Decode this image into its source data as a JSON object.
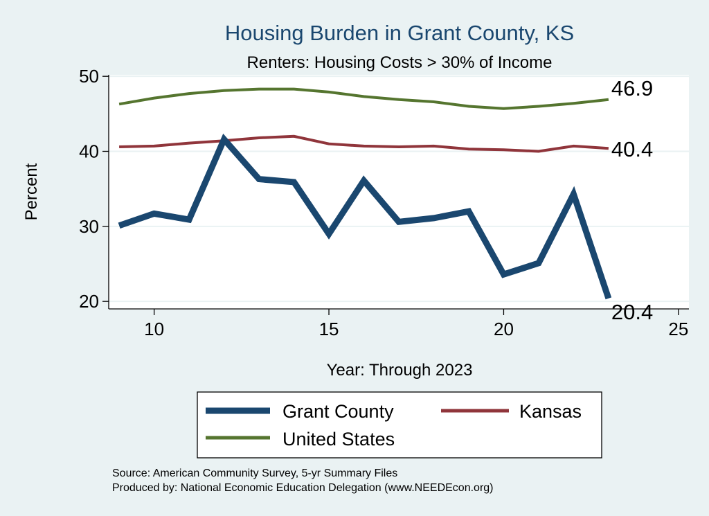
{
  "chart_data": {
    "type": "line",
    "title": "Housing Burden in Grant County, KS",
    "subtitle": "Renters: Housing Costs > 30% of Income",
    "xlabel": "Year: Through 2023",
    "ylabel": "Percent",
    "xlim": [
      8.7,
      25.3
    ],
    "ylim": [
      19,
      50.2
    ],
    "xticks": [
      10,
      15,
      20,
      25
    ],
    "yticks": [
      20,
      30,
      40,
      50
    ],
    "grid": true,
    "legend_position": "bottom",
    "x": [
      9,
      10,
      11,
      12,
      13,
      14,
      15,
      16,
      17,
      18,
      19,
      20,
      21,
      22,
      23
    ],
    "series": [
      {
        "name": "Grant County",
        "color": "#1a476f",
        "values": [
          30.1,
          31.7,
          30.9,
          41.6,
          36.3,
          35.9,
          29.0,
          36.1,
          30.6,
          31.1,
          32.0,
          23.6,
          25.1,
          34.3,
          20.4
        ],
        "end_label": "20.4"
      },
      {
        "name": "Kansas",
        "color": "#90353b",
        "values": [
          40.6,
          40.7,
          41.1,
          41.4,
          41.8,
          42.0,
          41.0,
          40.7,
          40.6,
          40.7,
          40.3,
          40.2,
          40.0,
          40.7,
          40.4
        ],
        "end_label": "40.4"
      },
      {
        "name": "United States",
        "color": "#55752f",
        "values": [
          46.3,
          47.1,
          47.7,
          48.1,
          48.3,
          48.3,
          47.9,
          47.3,
          46.9,
          46.6,
          46.0,
          45.7,
          46.0,
          46.4,
          46.9
        ],
        "end_label": "46.9"
      }
    ]
  },
  "source_lines": [
    "Source: American Community Survey, 5-yr Summary Files",
    "Produced by: National Economic Education Delegation (www.NEEDEcon.org)"
  ]
}
